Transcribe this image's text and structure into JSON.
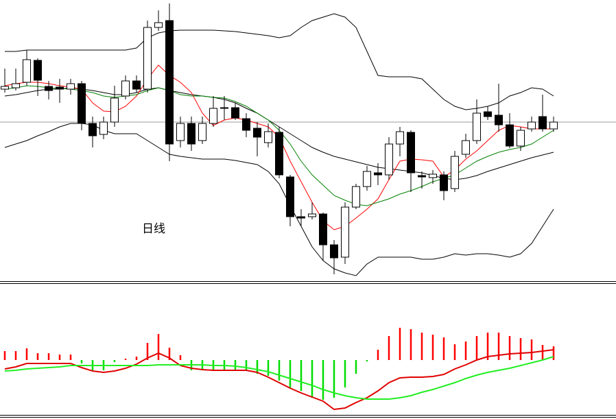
{
  "chart_data": [
    {
      "type": "candlestick",
      "annotation": "日线",
      "ylim": [
        0,
        410
      ],
      "up_color": "#ffffff",
      "down_color": "#000000",
      "open": [
        280,
        282,
        290,
        322,
        284,
        283,
        280,
        288,
        230,
        214,
        232,
        270,
        292,
        280,
        370,
        380,
        205,
        230,
        205,
        230,
        253,
        253,
        237,
        223,
        202,
        217,
        152,
        94,
        94,
        98,
        53,
        35,
        108,
        138,
        158,
        155,
        200,
        217,
        154,
        151,
        155,
        135,
        185,
        205,
        247,
        242,
        228,
        197,
        222,
        240,
        222
      ],
      "close": [
        284,
        288,
        323,
        293,
        278,
        280,
        288,
        230,
        212,
        232,
        267,
        292,
        280,
        370,
        377,
        200,
        230,
        200,
        230,
        252,
        252,
        238,
        220,
        210,
        218,
        155,
        94,
        92,
        98,
        53,
        34,
        108,
        138,
        160,
        155,
        200,
        218,
        158,
        152,
        156,
        132,
        182,
        205,
        245,
        240,
        228,
        197,
        220,
        232,
        222,
        232
      ],
      "high": [
        310,
        310,
        337,
        325,
        292,
        295,
        295,
        292,
        240,
        240,
        285,
        300,
        300,
        380,
        395,
        405,
        240,
        240,
        240,
        270,
        270,
        260,
        245,
        232,
        230,
        225,
        155,
        105,
        115,
        100,
        60,
        115,
        142,
        168,
        172,
        210,
        225,
        220,
        160,
        162,
        160,
        190,
        215,
        265,
        255,
        288,
        245,
        225,
        240,
        272,
        240
      ],
      "low": [
        275,
        278,
        285,
        270,
        265,
        260,
        272,
        220,
        195,
        207,
        225,
        265,
        275,
        275,
        365,
        175,
        195,
        190,
        200,
        225,
        235,
        235,
        210,
        182,
        195,
        150,
        80,
        80,
        90,
        30,
        10,
        25,
        105,
        132,
        140,
        148,
        182,
        130,
        135,
        142,
        118,
        130,
        180,
        200,
        235,
        218,
        194,
        190,
        218,
        218,
        218
      ],
      "series": [
        {
          "color": "#000000",
          "values": [
            335,
            335,
            337,
            337,
            337,
            337,
            337,
            337,
            337,
            337,
            337,
            337,
            340,
            355,
            362,
            365,
            366,
            366,
            366,
            366,
            365,
            364,
            362,
            360,
            358,
            355,
            358,
            370,
            380,
            385,
            390,
            385,
            370,
            335,
            300,
            298,
            298,
            298,
            295,
            280,
            265,
            255,
            250,
            252,
            255,
            260,
            270,
            275,
            282,
            280,
            270
          ]
        },
        {
          "color": "#000000",
          "values": [
            270,
            272,
            275,
            278,
            280,
            280,
            282,
            280,
            278,
            275,
            272,
            272,
            275,
            280,
            282,
            278,
            275,
            272,
            270,
            268,
            265,
            260,
            252,
            245,
            235,
            225,
            215,
            205,
            195,
            188,
            182,
            178,
            174,
            170,
            166,
            164,
            162,
            160,
            158,
            154,
            150,
            148,
            150,
            154,
            160,
            165,
            170,
            175,
            180,
            184,
            188
          ]
        },
        {
          "color": "#000000",
          "values": [
            195,
            200,
            205,
            212,
            218,
            225,
            230,
            230,
            228,
            220,
            215,
            215,
            215,
            205,
            195,
            185,
            182,
            180,
            178,
            178,
            178,
            176,
            173,
            170,
            160,
            142,
            110,
            80,
            50,
            30,
            18,
            12,
            8,
            25,
            35,
            35,
            35,
            35,
            32,
            32,
            35,
            40,
            38,
            40,
            40,
            38,
            35,
            40,
            55,
            80,
            105
          ]
        },
        {
          "color": "#ff0000",
          "values": [
            285,
            288,
            290,
            290,
            288,
            285,
            283,
            280,
            260,
            248,
            247,
            255,
            270,
            295,
            315,
            300,
            290,
            275,
            245,
            227,
            235,
            238,
            235,
            230,
            225,
            210,
            175,
            145,
            115,
            88,
            75,
            80,
            92,
            105,
            120,
            148,
            175,
            178,
            177,
            175,
            152,
            162,
            178,
            190,
            205,
            220,
            227,
            225,
            222,
            222,
            222
          ]
        },
        {
          "color": "#008000",
          "values": [
            280,
            282,
            285,
            284,
            282,
            281,
            280,
            278,
            275,
            270,
            268,
            270,
            272,
            278,
            282,
            278,
            272,
            270,
            270,
            268,
            267,
            262,
            255,
            245,
            235,
            220,
            200,
            175,
            155,
            140,
            125,
            118,
            112,
            110,
            115,
            120,
            127,
            132,
            138,
            145,
            150,
            155,
            165,
            175,
            182,
            188,
            192,
            195,
            200,
            210,
            220
          ]
        }
      ]
    },
    {
      "type": "macd",
      "ylim": [
        -82,
        112
      ],
      "up_color": "#ff0000",
      "down_color": "#00dd00",
      "values": [
        13,
        13,
        17,
        10,
        10,
        8,
        8,
        -5,
        -15,
        -15,
        -3,
        2,
        5,
        25,
        38,
        18,
        7,
        -15,
        -15,
        -15,
        -15,
        -15,
        -15,
        -20,
        -23,
        -30,
        -40,
        -45,
        -55,
        -58,
        -55,
        -40,
        -20,
        -2,
        15,
        35,
        47,
        45,
        40,
        37,
        33,
        23,
        27,
        35,
        40,
        40,
        35,
        32,
        30,
        22,
        20
      ],
      "series": [
        {
          "color": "#e00000",
          "values": [
            -13,
            -10,
            -5,
            -5,
            -5,
            -5,
            -5,
            -11,
            -16,
            -18,
            -16,
            -12,
            -6,
            3,
            10,
            3,
            -8,
            -12,
            -14,
            -15,
            -15,
            -15,
            -15,
            -18,
            -25,
            -33,
            -41,
            -48,
            -54,
            -60,
            -72,
            -70,
            -62,
            -55,
            -45,
            -33,
            -26,
            -25,
            -25,
            -24,
            -21,
            -13,
            -7,
            0,
            5,
            7,
            9,
            10,
            11,
            13,
            15
          ]
        },
        {
          "color": "#22ee22",
          "values": [
            -16,
            -15,
            -13,
            -12,
            -11,
            -10,
            -8,
            -8,
            -8,
            -8,
            -8,
            -8,
            -8,
            -8,
            -7,
            -7,
            -7,
            -7,
            -7,
            -8,
            -8,
            -9,
            -11,
            -14,
            -17,
            -22,
            -27,
            -32,
            -37,
            -43,
            -48,
            -52,
            -55,
            -57,
            -57,
            -57,
            -55,
            -52,
            -47,
            -43,
            -38,
            -33,
            -27,
            -22,
            -18,
            -15,
            -12,
            -8,
            -4,
            0,
            5
          ]
        }
      ]
    }
  ]
}
